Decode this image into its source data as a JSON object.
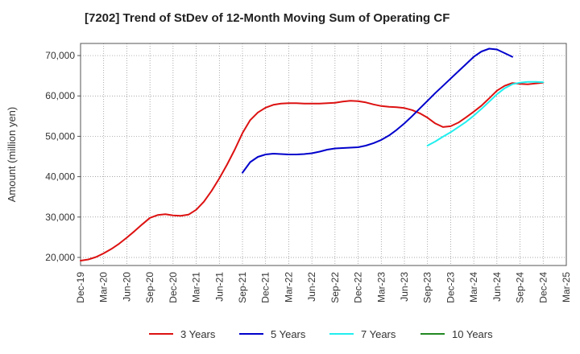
{
  "chart_data": {
    "type": "line",
    "title": "[7202]  Trend of StDev of 12-Month Moving Sum of Operating CF",
    "ylabel": "Amount (million yen)",
    "xlabel": "",
    "x_ticks": [
      "Dec-19",
      "Mar-20",
      "Jun-20",
      "Sep-20",
      "Dec-20",
      "Mar-21",
      "Jun-21",
      "Sep-21",
      "Dec-21",
      "Mar-22",
      "Jun-22",
      "Sep-22",
      "Dec-22",
      "Mar-23",
      "Jun-23",
      "Sep-23",
      "Dec-23",
      "Mar-24",
      "Jun-24",
      "Sep-24",
      "Dec-24",
      "Mar-25"
    ],
    "y_ticks": [
      "20,000",
      "30,000",
      "40,000",
      "50,000",
      "60,000",
      "70,000"
    ],
    "ylim": [
      18000,
      73000
    ],
    "grid": true,
    "legend_position": "bottom",
    "series": [
      {
        "name": "3 Years",
        "color": "#dd1111",
        "start_index": 0,
        "values": [
          19200,
          19500,
          20100,
          21000,
          22100,
          23400,
          24900,
          26500,
          28200,
          29800,
          30500,
          30700,
          30400,
          30300,
          30600,
          31800,
          33800,
          36500,
          39600,
          43000,
          46700,
          50800,
          54000,
          55900,
          57100,
          57800,
          58100,
          58200,
          58200,
          58100,
          58100,
          58100,
          58200,
          58300,
          58600,
          58800,
          58700,
          58400,
          57900,
          57500,
          57300,
          57200,
          57000,
          56500,
          55700,
          54600,
          53200,
          52300,
          52500,
          53400,
          54700,
          56100,
          57600,
          59400,
          61300,
          62500,
          63200,
          63000,
          62900,
          63100,
          63300
        ]
      },
      {
        "name": "5 Years",
        "color": "#0000cc",
        "start_index": 21,
        "values": [
          41000,
          43600,
          44900,
          45500,
          45700,
          45600,
          45500,
          45500,
          45600,
          45800,
          46200,
          46700,
          47000,
          47100,
          47200,
          47300,
          47700,
          48300,
          49100,
          50200,
          51600,
          53200,
          55000,
          56900,
          58800,
          60700,
          62500,
          64300,
          66100,
          67900,
          69700,
          71000,
          71700,
          71500,
          70600,
          69700
        ]
      },
      {
        "name": "7 Years",
        "color": "#22eeee",
        "start_index": 45,
        "values": [
          47700,
          48700,
          49900,
          51000,
          52300,
          53600,
          55100,
          56800,
          58600,
          60400,
          61900,
          62900,
          63300,
          63500,
          63500,
          63400
        ]
      },
      {
        "name": "10 Years",
        "color": "#228822",
        "start_index": 0,
        "values": []
      }
    ]
  }
}
